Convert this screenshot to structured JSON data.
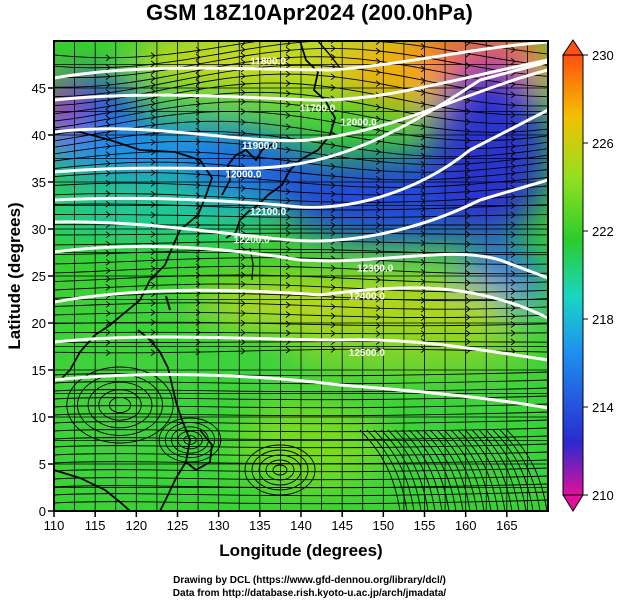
{
  "title": "GSM 18Z10Apr2024 (200.0hPa)",
  "xlabel": "Longitude (degrees)",
  "ylabel": "Latitude  (degrees)",
  "credit": {
    "line1": "Drawing by DCL (https://www.gfd-dennou.org/library/dcl/)",
    "line2": "Data from http://database.rish.kyoto-u.ac.jp/arch/jmadata/"
  },
  "chart_data": {
    "type": "heatmap",
    "xlim": [
      110,
      170
    ],
    "ylim": [
      0,
      50
    ],
    "x_ticks": [
      "110",
      "115",
      "120",
      "125",
      "130",
      "135",
      "140",
      "145",
      "150",
      "155",
      "160",
      "165"
    ],
    "y_ticks": [
      "0",
      "5",
      "10",
      "15",
      "20",
      "25",
      "30",
      "35",
      "40",
      "45"
    ],
    "grid": true,
    "colorbar": {
      "range": [
        210,
        230
      ],
      "labels": [
        "230",
        "226",
        "222",
        "218",
        "214",
        "210"
      ],
      "colors": [
        "#e0109a",
        "#2a2ad0",
        "#1e8ef0",
        "#18d6c4",
        "#2ccc2c",
        "#92e020",
        "#f4c000",
        "#ff5010"
      ]
    },
    "contours": [
      {
        "label": "11800.0",
        "at": [
          136,
          47.5
        ]
      },
      {
        "label": "11700.0",
        "at": [
          142,
          42.5
        ]
      },
      {
        "label": "11900.0",
        "at": [
          135,
          38.5
        ]
      },
      {
        "label": "12000.0",
        "at": [
          133,
          35.5
        ]
      },
      {
        "label": "12100.0",
        "at": [
          136,
          31.5
        ]
      },
      {
        "label": "12200.0",
        "at": [
          134,
          28.5
        ]
      },
      {
        "label": "12300.0",
        "at": [
          149,
          25.5
        ]
      },
      {
        "label": "12400.0",
        "at": [
          148,
          22.5
        ]
      },
      {
        "label": "12500.0",
        "at": [
          148,
          16.5
        ]
      },
      {
        "label": "12000.0",
        "at": [
          147,
          41
        ]
      }
    ],
    "colors": {
      "land_outline": "#000000",
      "contour": "#ffffff",
      "streamline": "#000000"
    }
  }
}
